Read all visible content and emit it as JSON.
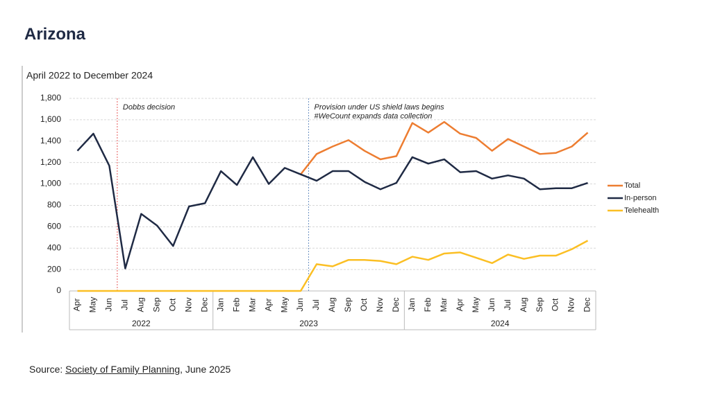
{
  "header": {
    "title": "Arizona"
  },
  "chart_data": {
    "type": "line",
    "title": "April 2022 to December 2024",
    "categories": [
      "Apr",
      "May",
      "Jun",
      "Jul",
      "Aug",
      "Sep",
      "Oct",
      "Nov",
      "Dec",
      "Jan",
      "Feb",
      "Mar",
      "Apr",
      "May",
      "Jun",
      "Jul",
      "Aug",
      "Sep",
      "Oct",
      "Nov",
      "Dec",
      "Jan",
      "Feb",
      "Mar",
      "Apr",
      "May",
      "Jun",
      "Jul",
      "Aug",
      "Sep",
      "Oct",
      "Nov",
      "Dec"
    ],
    "years": [
      "2022",
      "2023",
      "2024"
    ],
    "series": [
      {
        "name": "Total",
        "color": "#ed7d31",
        "values": [
          null,
          null,
          null,
          null,
          null,
          null,
          null,
          null,
          null,
          null,
          null,
          null,
          null,
          null,
          1090,
          1280,
          1350,
          1410,
          1310,
          1230,
          1260,
          1570,
          1480,
          1580,
          1470,
          1430,
          1310,
          1420,
          1350,
          1280,
          1290,
          1350,
          1480
        ]
      },
      {
        "name": "In-person",
        "color": "#1f2a44",
        "values": [
          1310,
          1470,
          1170,
          210,
          720,
          610,
          420,
          790,
          820,
          1120,
          990,
          1250,
          1000,
          1150,
          1090,
          1030,
          1120,
          1120,
          1020,
          950,
          1010,
          1250,
          1190,
          1230,
          1110,
          1120,
          1050,
          1080,
          1050,
          950,
          960,
          960,
          1010
        ]
      },
      {
        "name": "Telehealth",
        "color": "#fbbf24",
        "values": [
          0,
          0,
          0,
          0,
          0,
          0,
          0,
          0,
          0,
          0,
          0,
          0,
          0,
          0,
          0,
          250,
          230,
          290,
          290,
          280,
          250,
          320,
          290,
          350,
          360,
          310,
          260,
          340,
          300,
          330,
          330,
          390,
          470
        ]
      }
    ],
    "ylim": [
      0,
      1800
    ],
    "yticks": [
      0,
      {
        "value": 200,
        "label": "200"
      },
      {
        "value": 400,
        "label": "400"
      },
      {
        "value": 600,
        "label": "600"
      },
      {
        "value": 800,
        "label": "800"
      },
      {
        "value": 1000,
        "label": "1,000"
      },
      {
        "value": 1200,
        "label": "1,200"
      },
      {
        "value": 1400,
        "label": "1,400"
      },
      {
        "value": 1600,
        "label": "1,600"
      },
      {
        "value": 1800,
        "label": "1,800"
      }
    ],
    "grid": true,
    "legend": "right",
    "annotations": [
      {
        "lines": [
          "Dobbs decision"
        ],
        "color": "#e03030"
      },
      {
        "lines": [
          "Provision under US shield laws begins",
          "#WeCount expands data collection"
        ],
        "color": "#4a78b5"
      }
    ]
  },
  "source": {
    "prefix": "Source: ",
    "link": "Society of Family Planning",
    "suffix": ", June 2025"
  }
}
